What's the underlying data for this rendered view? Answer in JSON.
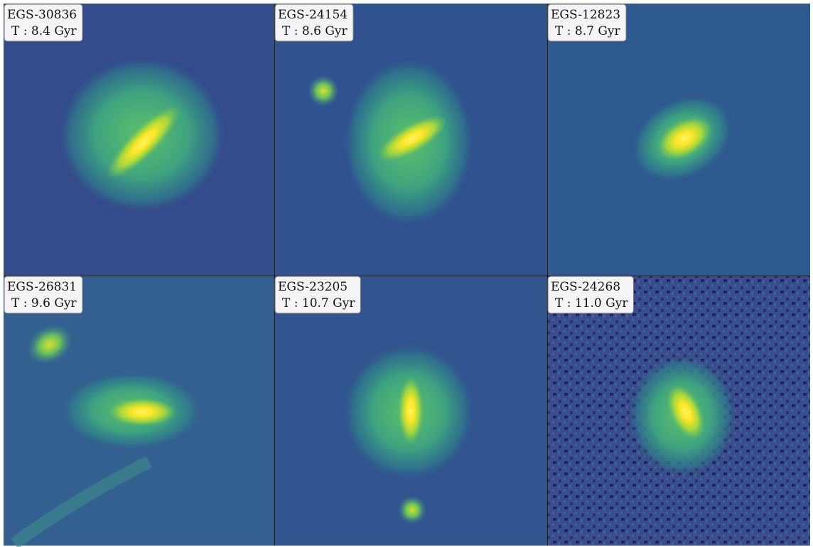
{
  "panels": [
    {
      "id": "EGS-30836",
      "label": "T : 8.4 Gyr"
    },
    {
      "id": "EGS-24154",
      "label": "T : 8.6 Gyr"
    },
    {
      "id": "EGS-12823",
      "label": "T : 8.7 Gyr"
    },
    {
      "id": "EGS-26831",
      "label": "T : 9.6 Gyr"
    },
    {
      "id": "EGS-23205",
      "label": "T : 10.7 Gyr"
    },
    {
      "id": "EGS-24268",
      "label": "T : 11.0 Gyr"
    }
  ]
}
